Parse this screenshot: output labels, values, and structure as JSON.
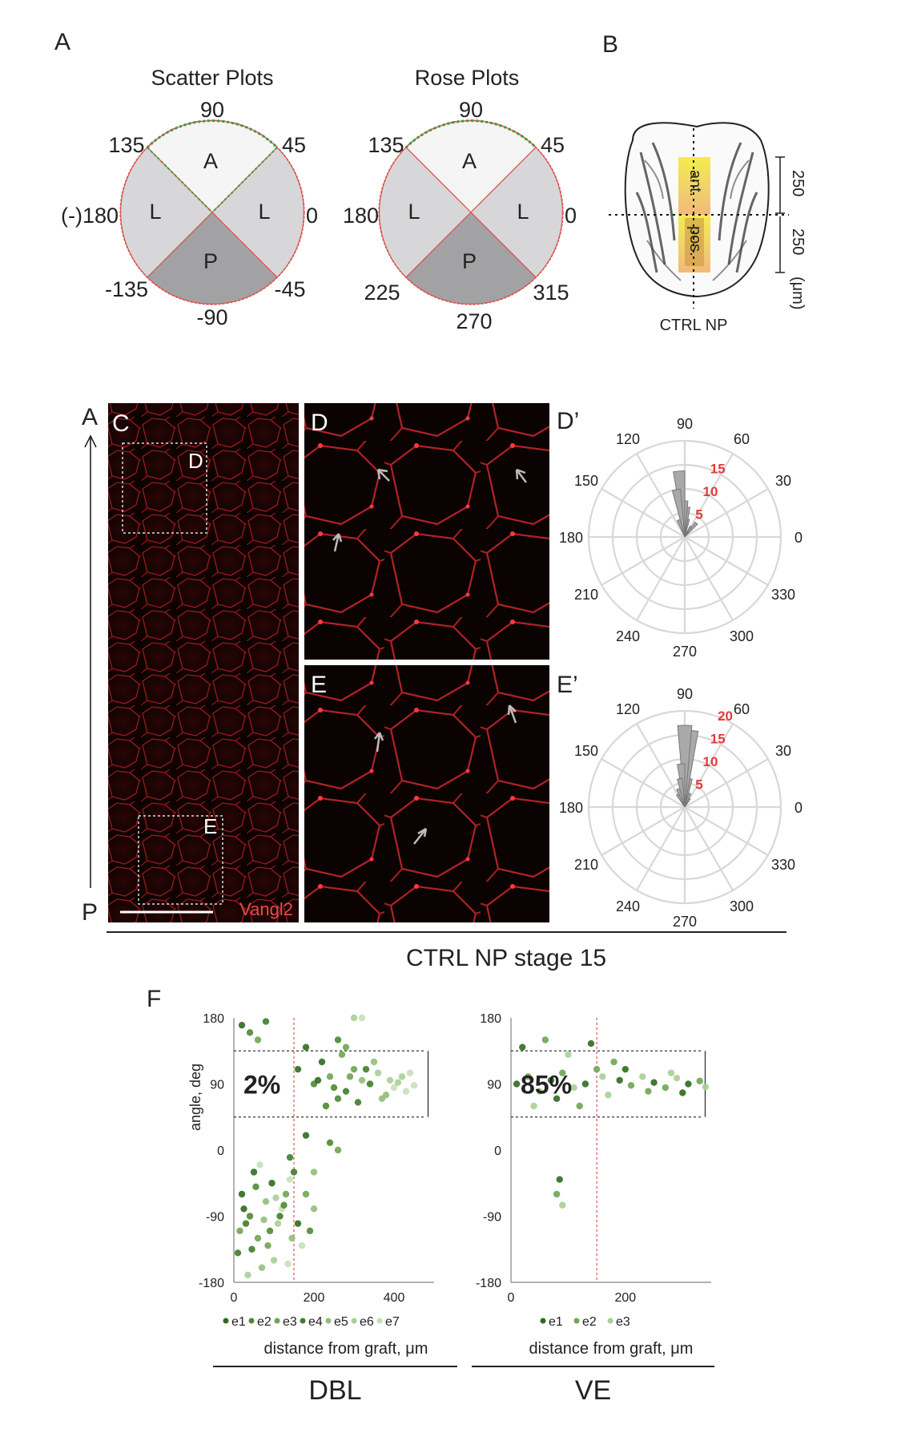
{
  "panels": {
    "A": "A",
    "B": "B",
    "C": "C",
    "D": "D",
    "D_prime": "D’",
    "E": "E",
    "E_prime": "E’",
    "F": "F"
  },
  "panel_a": {
    "scatter_title": "Scatter Plots",
    "rose_title": "Rose Plots",
    "scatter_labels": {
      "top": "90",
      "ul": "135",
      "ur": "45",
      "left": "(-)180",
      "right": "0",
      "ll": "-135",
      "lr": "-45",
      "bottom": "-90"
    },
    "rose_labels": {
      "top": "90",
      "ul": "135",
      "ur": "45",
      "left": "180",
      "right": "0",
      "ll": "225",
      "lr": "315",
      "bottom": "270"
    },
    "sector_A": "A",
    "sector_L": "L",
    "sector_P": "P"
  },
  "panel_b": {
    "ant": "ant.",
    "pos": "pos.",
    "dim_top": "250",
    "dim_bottom": "250",
    "unit": "(μm)",
    "caption": "CTRL NP"
  },
  "panel_c": {
    "axis_top": "A",
    "axis_bottom": "P",
    "box_d": "D",
    "box_e": "E",
    "stain": "Vangl2",
    "caption": "CTRL NP stage 15"
  },
  "rose_d": {
    "angles": {
      "a90": "90",
      "a60": "60",
      "a30": "30",
      "a0": "0",
      "a330": "330",
      "a300": "300",
      "a270": "270",
      "a240": "240",
      "a210": "210",
      "a180": "180",
      "a150": "150",
      "a120": "120"
    },
    "rings": [
      "5",
      "10",
      "15"
    ],
    "petals": [
      3,
      2,
      1,
      3,
      5,
      6,
      11,
      8,
      3
    ],
    "petal_angles_deg": [
      50,
      60,
      70,
      80,
      85,
      90,
      95,
      100,
      110
    ]
  },
  "rose_e": {
    "angles": {
      "a90": "90",
      "a60": "60",
      "a30": "30",
      "a0": "0",
      "a330": "330",
      "a300": "300",
      "a270": "270",
      "a240": "240",
      "a210": "210",
      "a180": "180",
      "a150": "150",
      "a120": "120"
    },
    "rings": [
      "5",
      "10",
      "15",
      "20"
    ],
    "petals": [
      2,
      3,
      6,
      16,
      17,
      9,
      6,
      4,
      3
    ],
    "petal_angles_deg": [
      60,
      70,
      80,
      85,
      90,
      95,
      100,
      110,
      120
    ]
  },
  "chart_data": [
    {
      "type": "scatter",
      "title": "DBL",
      "xlabel": "distance from graft, μm",
      "ylabel": "angle, deg",
      "xlim": [
        0,
        500
      ],
      "ylim": [
        -180,
        180
      ],
      "x_ticks": [
        "0",
        "200",
        "400"
      ],
      "y_ticks": [
        "180",
        "90",
        "0",
        "-90",
        "-180"
      ],
      "annotation": "2%",
      "series": [
        "e1",
        "e2",
        "e3",
        "e4",
        "e5",
        "e6",
        "e7"
      ],
      "colors": [
        "#2f6b1e",
        "#4d8a32",
        "#6fa552",
        "#3f7d2a",
        "#90bf78",
        "#a9cf95",
        "#c6e0b6"
      ],
      "points": [
        [
          20,
          -60,
          0
        ],
        [
          40,
          -90,
          1
        ],
        [
          60,
          -120,
          2
        ],
        [
          30,
          -100,
          3
        ],
        [
          80,
          -70,
          4
        ],
        [
          100,
          -150,
          5
        ],
        [
          120,
          -80,
          6
        ],
        [
          50,
          -30,
          0
        ],
        [
          90,
          -110,
          1
        ],
        [
          130,
          -60,
          2
        ],
        [
          10,
          -140,
          3
        ],
        [
          70,
          -160,
          4
        ],
        [
          110,
          -100,
          5
        ],
        [
          140,
          -40,
          6
        ],
        [
          25,
          -80,
          0
        ],
        [
          55,
          -50,
          1
        ],
        [
          85,
          -130,
          2
        ],
        [
          115,
          -90,
          3
        ],
        [
          145,
          -120,
          4
        ],
        [
          35,
          -170,
          5
        ],
        [
          65,
          -20,
          6
        ],
        [
          95,
          -45,
          0
        ],
        [
          125,
          -75,
          1
        ],
        [
          15,
          -110,
          2
        ],
        [
          45,
          -135,
          3
        ],
        [
          75,
          -95,
          4
        ],
        [
          105,
          -65,
          5
        ],
        [
          135,
          -155,
          6
        ],
        [
          160,
          -100,
          0
        ],
        [
          180,
          -60,
          2
        ],
        [
          200,
          -80,
          4
        ],
        [
          170,
          -130,
          6
        ],
        [
          190,
          -110,
          1
        ],
        [
          150,
          -30,
          3
        ],
        [
          160,
          110,
          0
        ],
        [
          200,
          90,
          1
        ],
        [
          240,
          100,
          2
        ],
        [
          280,
          80,
          3
        ],
        [
          320,
          95,
          4
        ],
        [
          360,
          105,
          5
        ],
        [
          400,
          85,
          6
        ],
        [
          220,
          120,
          0
        ],
        [
          260,
          70,
          1
        ],
        [
          300,
          110,
          2
        ],
        [
          340,
          90,
          3
        ],
        [
          380,
          75,
          4
        ],
        [
          420,
          100,
          5
        ],
        [
          450,
          88,
          6
        ],
        [
          180,
          140,
          0
        ],
        [
          230,
          60,
          1
        ],
        [
          270,
          130,
          2
        ],
        [
          310,
          65,
          3
        ],
        [
          350,
          120,
          4
        ],
        [
          390,
          95,
          5
        ],
        [
          430,
          80,
          6
        ],
        [
          210,
          95,
          0
        ],
        [
          250,
          85,
          1
        ],
        [
          290,
          100,
          2
        ],
        [
          330,
          110,
          3
        ],
        [
          370,
          70,
          4
        ],
        [
          410,
          92,
          5
        ],
        [
          440,
          105,
          6
        ],
        [
          300,
          180,
          5
        ],
        [
          320,
          180,
          6
        ],
        [
          280,
          140,
          2
        ],
        [
          260,
          150,
          1
        ],
        [
          180,
          20,
          0
        ],
        [
          240,
          10,
          1
        ],
        [
          260,
          0,
          2
        ],
        [
          140,
          -10,
          3
        ],
        [
          200,
          -30,
          4
        ],
        [
          20,
          170,
          0
        ],
        [
          40,
          160,
          1
        ],
        [
          60,
          150,
          2
        ],
        [
          80,
          175,
          3
        ]
      ]
    },
    {
      "type": "scatter",
      "title": "VE",
      "xlabel": "distance from graft, μm",
      "ylabel": "",
      "xlim": [
        0,
        350
      ],
      "ylim": [
        -180,
        180
      ],
      "x_ticks": [
        "0",
        "200"
      ],
      "y_ticks": [
        "180",
        "90",
        "0",
        "-90",
        "-180"
      ],
      "annotation": "85%",
      "series": [
        "e1",
        "e2",
        "e3"
      ],
      "colors": [
        "#2f6b1e",
        "#6fa552",
        "#a9cf95"
      ],
      "points": [
        [
          10,
          90,
          0
        ],
        [
          30,
          100,
          1
        ],
        [
          50,
          80,
          2
        ],
        [
          70,
          95,
          0
        ],
        [
          90,
          105,
          1
        ],
        [
          110,
          85,
          2
        ],
        [
          130,
          90,
          0
        ],
        [
          150,
          110,
          1
        ],
        [
          170,
          75,
          2
        ],
        [
          190,
          95,
          0
        ],
        [
          210,
          88,
          1
        ],
        [
          230,
          100,
          2
        ],
        [
          250,
          92,
          0
        ],
        [
          270,
          85,
          1
        ],
        [
          290,
          98,
          2
        ],
        [
          310,
          90,
          0
        ],
        [
          330,
          94,
          1
        ],
        [
          340,
          86,
          2
        ],
        [
          20,
          140,
          0
        ],
        [
          60,
          150,
          1
        ],
        [
          100,
          130,
          2
        ],
        [
          140,
          145,
          0
        ],
        [
          180,
          120,
          1
        ],
        [
          40,
          60,
          2
        ],
        [
          80,
          70,
          0
        ],
        [
          120,
          60,
          1
        ],
        [
          160,
          100,
          2
        ],
        [
          200,
          110,
          0
        ],
        [
          240,
          80,
          1
        ],
        [
          280,
          105,
          2
        ],
        [
          300,
          78,
          0
        ],
        [
          85,
          -40,
          0
        ],
        [
          80,
          -60,
          1
        ],
        [
          90,
          -75,
          2
        ]
      ]
    }
  ]
}
